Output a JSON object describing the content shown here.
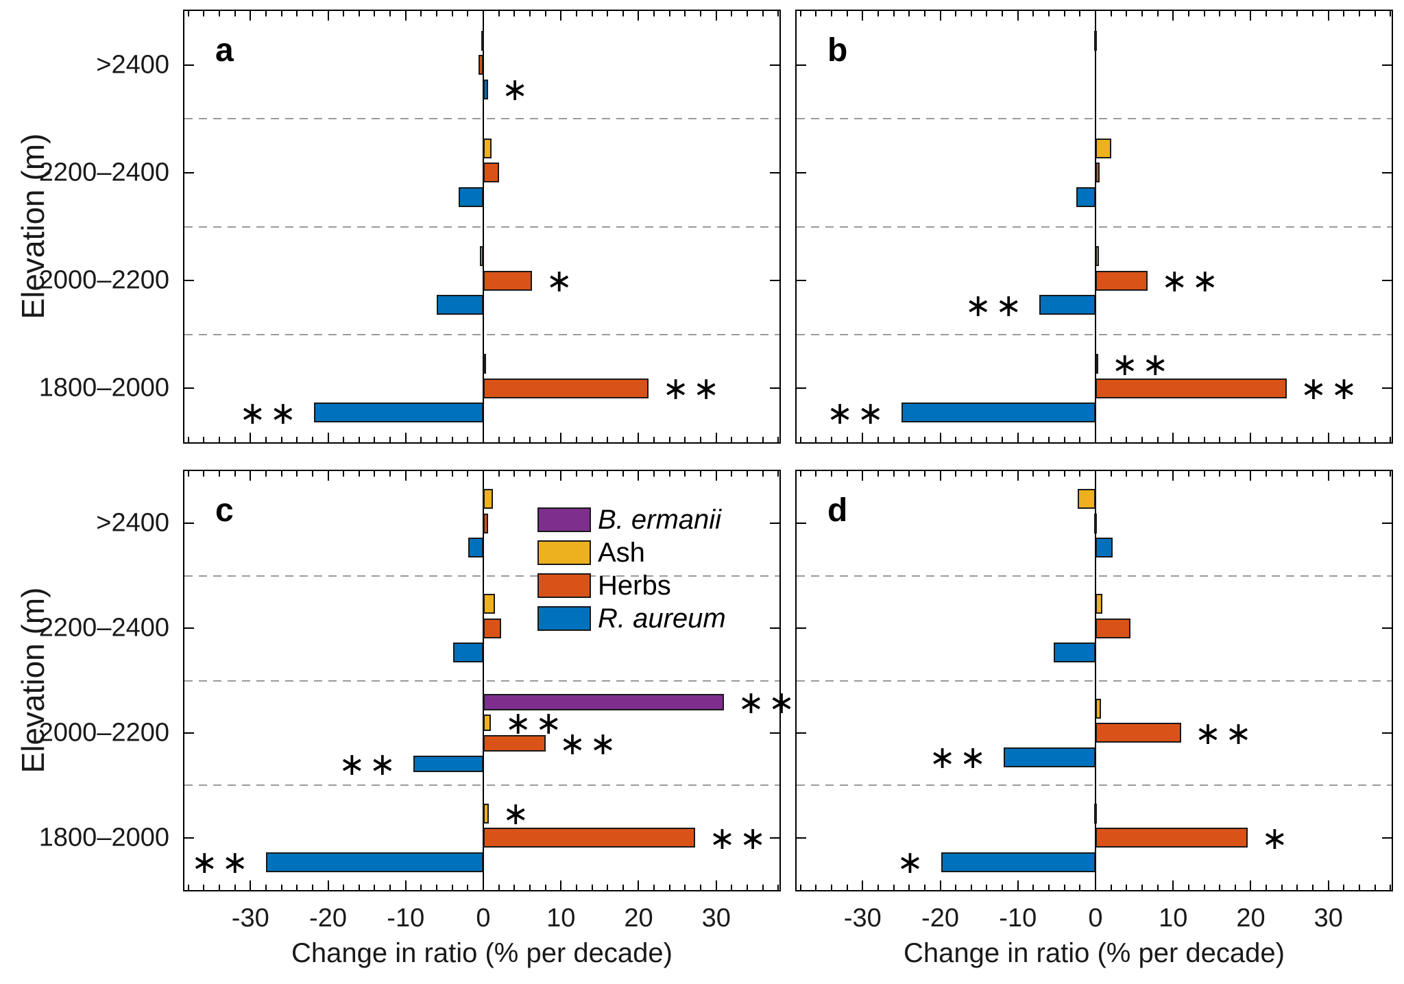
{
  "figure": {
    "xlabel": "Change in ratio (% per decade)",
    "ylabel": "Elevation (m)",
    "xlim": [
      -38.5,
      38.5
    ],
    "x_ticks": [
      -30,
      -20,
      -10,
      0,
      10,
      20,
      30
    ],
    "x_tick_labels": [
      "-30",
      "-20",
      "-10",
      "0",
      "10",
      "20",
      "30"
    ],
    "minor_tick_step": 2,
    "y_categories": [
      ">2400",
      "2200–2400",
      "2000–2200",
      "1800–2000"
    ],
    "grid": "dashed horizontal separators between elevation bands",
    "legend_position": "inside panel c, upper right of zero line",
    "series": [
      {
        "name": "B. ermanii",
        "color": "#7E2F8E",
        "italic": true
      },
      {
        "name": "Ash",
        "color": "#EDB120",
        "italic": false
      },
      {
        "name": "Herbs",
        "color": "#D95319",
        "italic": false
      },
      {
        "name": "R. aureum",
        "color": "#0072BD",
        "italic": true
      }
    ],
    "sig_glyph": "∗",
    "colors": {
      "axis": "#000000",
      "dashed_separator": "#9a9a9a",
      "background": "#ffffff"
    }
  },
  "chart_data": [
    {
      "type": "bar",
      "orientation": "horizontal",
      "panel": "a",
      "letter": "a",
      "groups": [
        {
          "category": ">2400",
          "bars": [
            {
              "series": "Ash",
              "value": -0.3,
              "sig": ""
            },
            {
              "series": "Herbs",
              "value": -0.6,
              "sig": ""
            },
            {
              "series": "R. aureum",
              "value": 0.6,
              "sig": "*"
            }
          ]
        },
        {
          "category": "2200–2400",
          "bars": [
            {
              "series": "Ash",
              "value": 1.1,
              "sig": ""
            },
            {
              "series": "Herbs",
              "value": 2.0,
              "sig": ""
            },
            {
              "series": "R. aureum",
              "value": -3.2,
              "sig": ""
            }
          ]
        },
        {
          "category": "2000–2200",
          "bars": [
            {
              "series": "Ash",
              "value": -0.4,
              "sig": ""
            },
            {
              "series": "Herbs",
              "value": 6.3,
              "sig": "*"
            },
            {
              "series": "R. aureum",
              "value": -6.0,
              "sig": ""
            }
          ]
        },
        {
          "category": "1800–2000",
          "bars": [
            {
              "series": "Ash",
              "value": 0.2,
              "sig": ""
            },
            {
              "series": "Herbs",
              "value": 21.3,
              "sig": "**"
            },
            {
              "series": "R. aureum",
              "value": -21.8,
              "sig": "**"
            }
          ]
        }
      ]
    },
    {
      "type": "bar",
      "orientation": "horizontal",
      "panel": "b",
      "letter": "b",
      "groups": [
        {
          "category": ">2400",
          "bars": [
            {
              "series": "Ash",
              "value": -0.15,
              "sig": ""
            },
            {
              "series": "Herbs",
              "value": 0,
              "sig": ""
            },
            {
              "series": "R. aureum",
              "value": 0,
              "sig": ""
            }
          ]
        },
        {
          "category": "2200–2400",
          "bars": [
            {
              "series": "Ash",
              "value": 2.0,
              "sig": ""
            },
            {
              "series": "Herbs",
              "value": 0.5,
              "sig": ""
            },
            {
              "series": "R. aureum",
              "value": -2.5,
              "sig": ""
            }
          ]
        },
        {
          "category": "2000–2200",
          "bars": [
            {
              "series": "Ash",
              "value": 0.4,
              "sig": ""
            },
            {
              "series": "Herbs",
              "value": 6.7,
              "sig": "**"
            },
            {
              "series": "R. aureum",
              "value": -7.2,
              "sig": "**"
            }
          ]
        },
        {
          "category": "1800–2000",
          "bars": [
            {
              "series": "Ash",
              "value": 0.3,
              "sig": "**"
            },
            {
              "series": "Herbs",
              "value": 24.6,
              "sig": "**"
            },
            {
              "series": "R. aureum",
              "value": -25.0,
              "sig": "**"
            }
          ]
        }
      ]
    },
    {
      "type": "bar",
      "orientation": "horizontal",
      "panel": "c",
      "letter": "c",
      "groups": [
        {
          "category": ">2400",
          "bars": [
            {
              "series": "Ash",
              "value": 1.2,
              "sig": ""
            },
            {
              "series": "Herbs",
              "value": 0.6,
              "sig": ""
            },
            {
              "series": "R. aureum",
              "value": -1.9,
              "sig": ""
            }
          ]
        },
        {
          "category": "2200–2400",
          "bars": [
            {
              "series": "Ash",
              "value": 1.5,
              "sig": ""
            },
            {
              "series": "Herbs",
              "value": 2.3,
              "sig": ""
            },
            {
              "series": "R. aureum",
              "value": -3.9,
              "sig": ""
            }
          ]
        },
        {
          "category": "2000–2200",
          "bars": [
            {
              "series": "B. ermanii",
              "value": 31.0,
              "sig": "**"
            },
            {
              "series": "Ash",
              "value": 1.0,
              "sig": "**"
            },
            {
              "series": "Herbs",
              "value": 8.0,
              "sig": "**"
            },
            {
              "series": "R. aureum",
              "value": -9.0,
              "sig": "**"
            }
          ]
        },
        {
          "category": "1800–2000",
          "bars": [
            {
              "series": "Ash",
              "value": 0.7,
              "sig": "*"
            },
            {
              "series": "Herbs",
              "value": 27.3,
              "sig": "**"
            },
            {
              "series": "R. aureum",
              "value": -28.0,
              "sig": "**"
            }
          ]
        }
      ]
    },
    {
      "type": "bar",
      "orientation": "horizontal",
      "panel": "d",
      "letter": "d",
      "groups": [
        {
          "category": ">2400",
          "bars": [
            {
              "series": "Ash",
              "value": -2.3,
              "sig": ""
            },
            {
              "series": "Herbs",
              "value": -0.1,
              "sig": ""
            },
            {
              "series": "R. aureum",
              "value": 2.2,
              "sig": ""
            }
          ]
        },
        {
          "category": "2200–2400",
          "bars": [
            {
              "series": "Ash",
              "value": 0.9,
              "sig": ""
            },
            {
              "series": "Herbs",
              "value": 4.5,
              "sig": ""
            },
            {
              "series": "R. aureum",
              "value": -5.4,
              "sig": ""
            }
          ]
        },
        {
          "category": "2000–2200",
          "bars": [
            {
              "series": "Ash",
              "value": 0.7,
              "sig": ""
            },
            {
              "series": "Herbs",
              "value": 11.0,
              "sig": "**"
            },
            {
              "series": "R. aureum",
              "value": -11.8,
              "sig": "**"
            }
          ]
        },
        {
          "category": "1800–2000",
          "bars": [
            {
              "series": "Ash",
              "value": -0.15,
              "sig": ""
            },
            {
              "series": "Herbs",
              "value": 19.6,
              "sig": "*"
            },
            {
              "series": "R. aureum",
              "value": -19.9,
              "sig": "*"
            }
          ]
        }
      ]
    }
  ]
}
